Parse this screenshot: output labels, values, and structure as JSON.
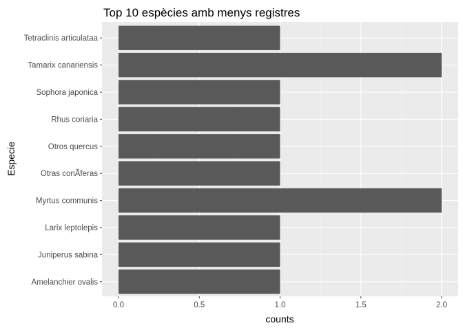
{
  "chart_data": {
    "type": "bar",
    "orientation": "horizontal",
    "title": "Top 10 espècies amb menys registres",
    "xlabel": "counts",
    "ylabel": "Especie",
    "categories": [
      "Tetraclinis articulataa",
      "Tamarix canariensis",
      "Sophora japonica",
      "Rhus coriaria",
      "Otros quercus",
      "Otras conÃ­feras",
      "Myrtus communis",
      "Larix leptolepis",
      "Juniperus sabina",
      "Amelanchier ovalis"
    ],
    "values": [
      1,
      2,
      1,
      1,
      1,
      1,
      2,
      1,
      1,
      1
    ],
    "xlim": [
      0,
      2
    ],
    "xticks": [
      "0.0",
      "0.5",
      "1.0",
      "1.5",
      "2.0"
    ],
    "grid": true,
    "legend": "none",
    "colors": {
      "bar": "#595959",
      "panel": "#ebebeb",
      "grid_major": "#ffffff",
      "grid_minor": "#f5f5f5",
      "text": "#4d4d4d",
      "title": "#000000"
    }
  }
}
